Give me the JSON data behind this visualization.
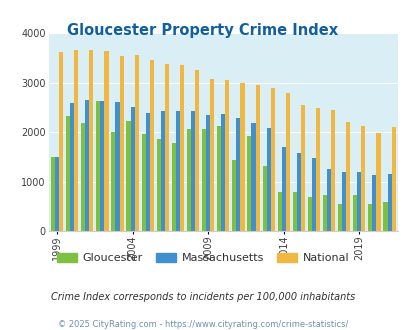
{
  "title": "Gloucester Property Crime Index",
  "title_color": "#1060a0",
  "years": [
    1999,
    2000,
    2001,
    2002,
    2003,
    2004,
    2005,
    2006,
    2007,
    2008,
    2009,
    2010,
    2011,
    2012,
    2013,
    2014,
    2015,
    2016,
    2017,
    2018,
    2019,
    2020,
    2021
  ],
  "gloucester": [
    1500,
    2330,
    2180,
    2620,
    2000,
    2230,
    1960,
    1850,
    1780,
    2070,
    2060,
    2120,
    1430,
    1920,
    1320,
    780,
    790,
    690,
    720,
    550,
    730,
    550,
    580
  ],
  "massachusetts": [
    1500,
    2580,
    2650,
    2620,
    2600,
    2500,
    2390,
    2420,
    2420,
    2430,
    2350,
    2370,
    2290,
    2180,
    2080,
    1700,
    1580,
    1470,
    1260,
    1200,
    1190,
    1130,
    1150
  ],
  "national": [
    3620,
    3650,
    3660,
    3630,
    3540,
    3550,
    3460,
    3370,
    3360,
    3260,
    3070,
    3060,
    2990,
    2940,
    2890,
    2780,
    2540,
    2490,
    2440,
    2200,
    2120,
    1980,
    2100
  ],
  "gloucester_color": "#80c040",
  "massachusetts_color": "#4090d0",
  "national_color": "#f0b840",
  "bg_color": "#daeef5",
  "ylabel_ticks": [
    0,
    1000,
    2000,
    3000,
    4000
  ],
  "xlim_ticks": [
    1999,
    2004,
    2009,
    2014,
    2019
  ],
  "footnote1": "Crime Index corresponds to incidents per 100,000 inhabitants",
  "footnote2": "© 2025 CityRating.com - https://www.cityrating.com/crime-statistics/",
  "footnote1_color": "#303030",
  "footnote2_color": "#7090b0"
}
